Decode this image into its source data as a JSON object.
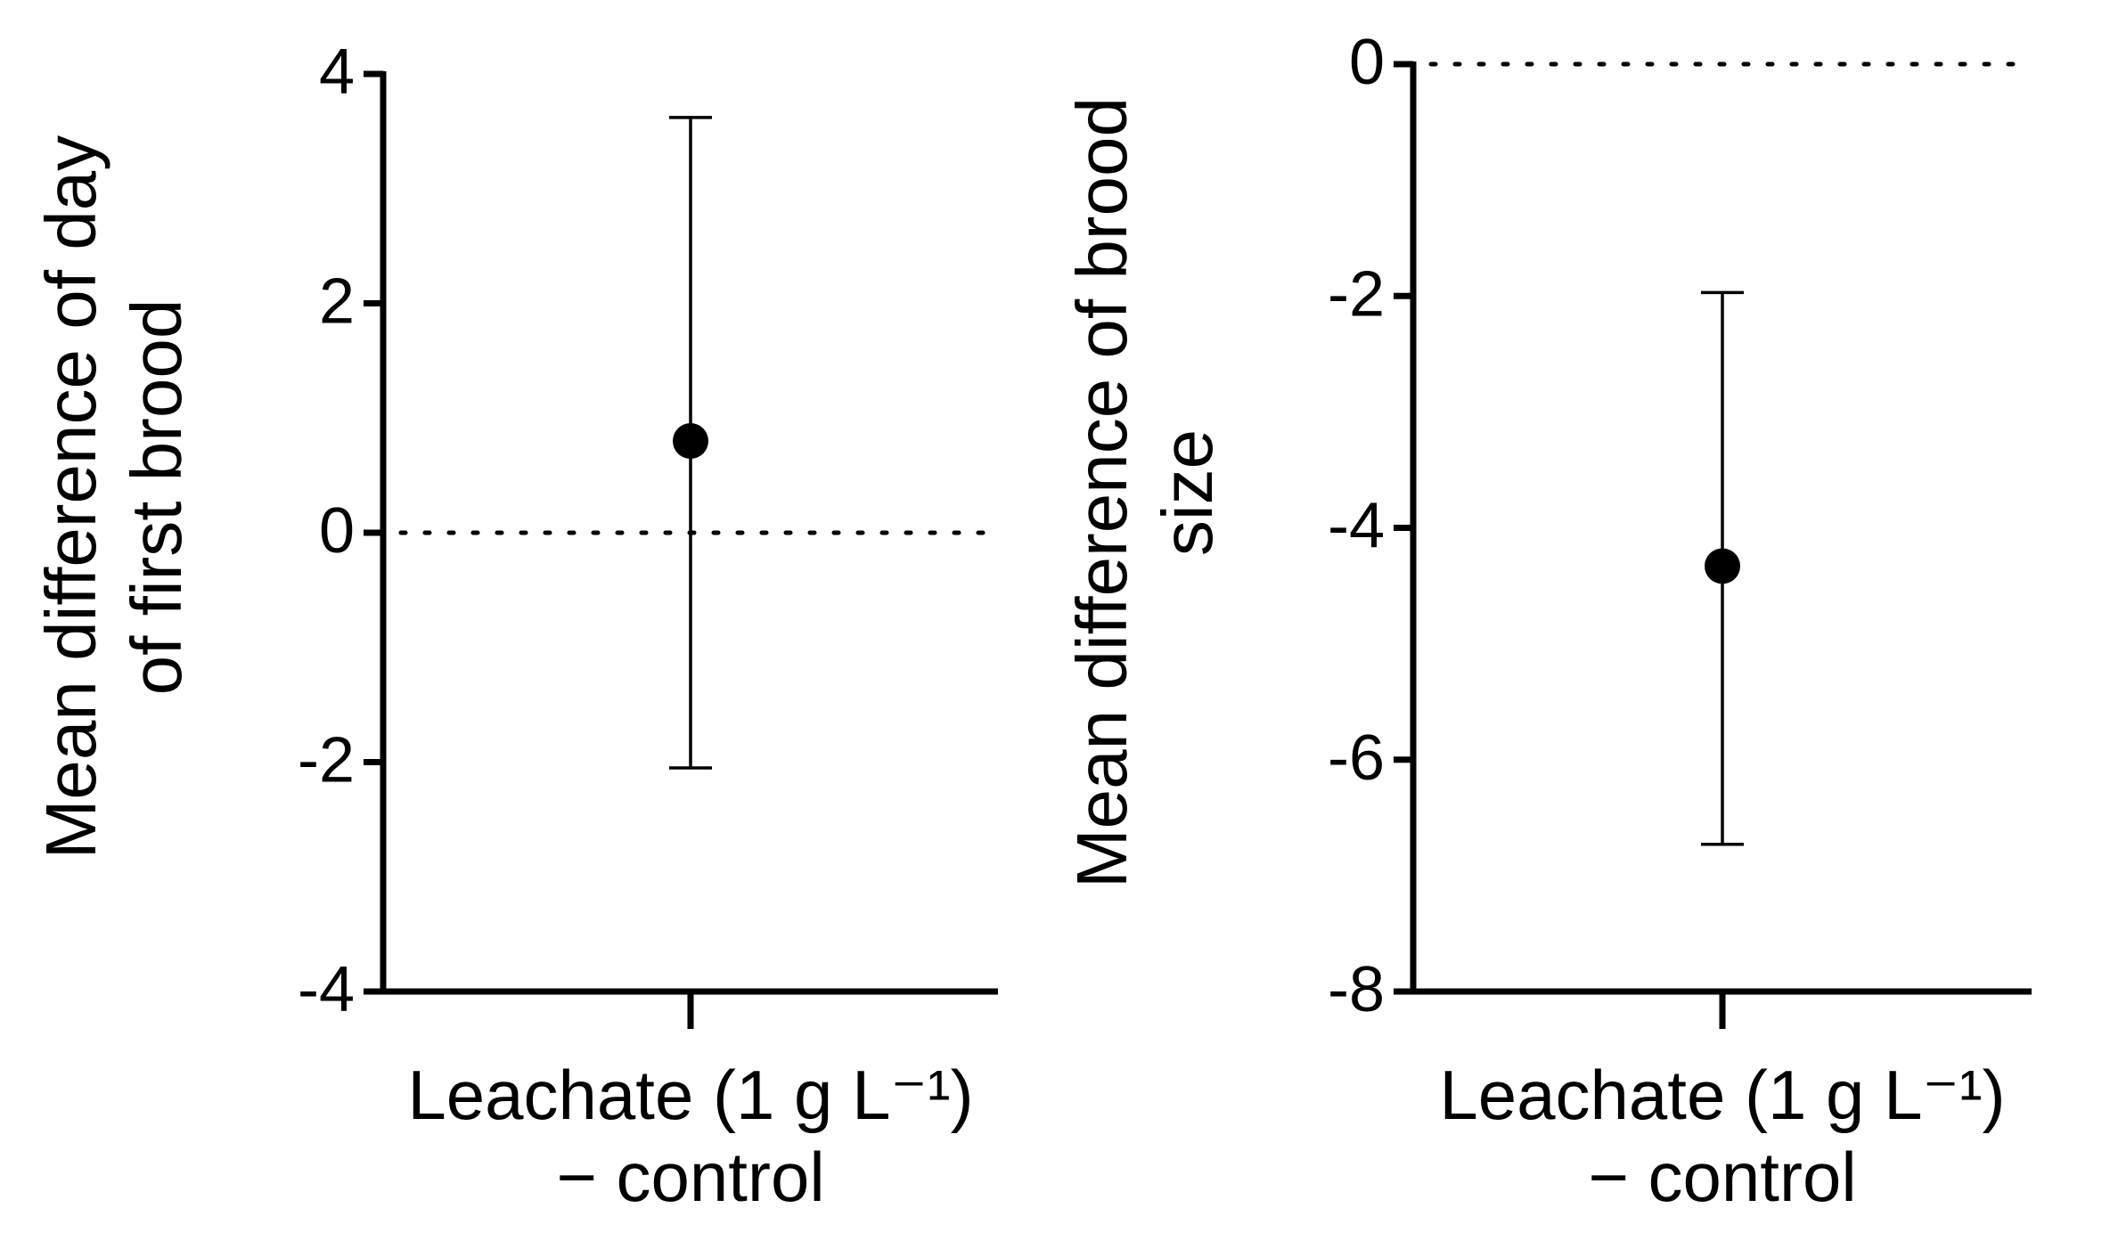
{
  "chart_data": [
    {
      "type": "errorbar",
      "ylabel": "Mean difference of day of first brood",
      "categories": [
        "Leachate (1 g L⁻¹) − control"
      ],
      "values": [
        0.8
      ],
      "lower": [
        -2.05
      ],
      "upper": [
        3.62
      ],
      "color": "#000000",
      "ylim": [
        -4,
        4
      ],
      "yticks": [
        -4,
        -2,
        0,
        2,
        4
      ],
      "hline": 0
    },
    {
      "type": "errorbar",
      "ylabel": "Mean difference of brood size",
      "categories": [
        "Leachate (1 g L⁻¹) − control"
      ],
      "values": [
        -4.33
      ],
      "lower": [
        -6.73
      ],
      "upper": [
        -1.97
      ],
      "color": "#000000",
      "ylim": [
        -8,
        0
      ],
      "yticks": [
        -8,
        -6,
        -4,
        -2,
        0
      ],
      "hline": 0
    }
  ]
}
